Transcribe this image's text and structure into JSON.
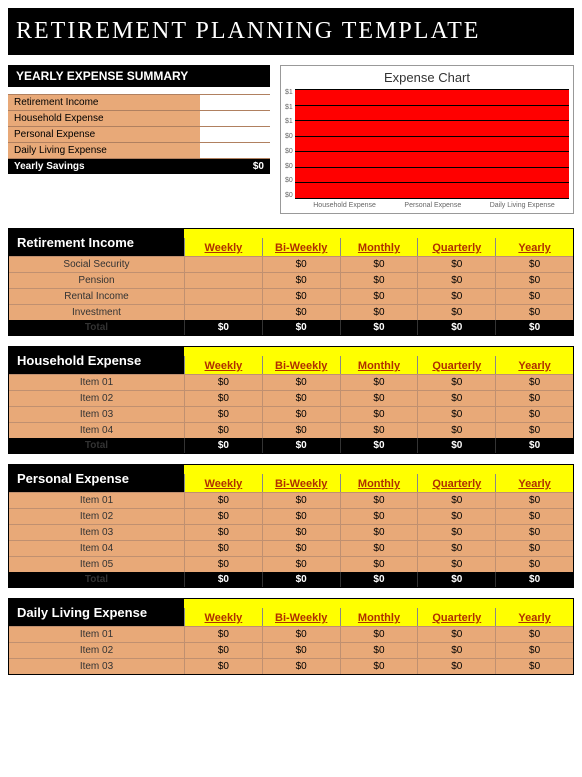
{
  "title": "RETIREMENT PLANNING TEMPLATE",
  "summary": {
    "header": "YEARLY EXPENSE SUMMARY",
    "rows": [
      {
        "label": "Retirement Income",
        "value": ""
      },
      {
        "label": "Household Expense",
        "value": ""
      },
      {
        "label": "Personal Expense",
        "value": ""
      },
      {
        "label": "Daily Living Expense",
        "value": ""
      }
    ],
    "total_label": "Yearly Savings",
    "total_value": "$0"
  },
  "chart": {
    "title": "Expense Chart",
    "type": "bar",
    "categories": [
      "Household Expense",
      "Personal Expense",
      "Daily Living Expense"
    ],
    "ylabels": [
      "$1",
      "$1",
      "$1",
      "$0",
      "$0",
      "$0",
      "$0",
      "$0"
    ],
    "plot_background": "#ff0000",
    "grid_color": "#000000",
    "grid_lines": 7
  },
  "columns": [
    "Weekly",
    "Bi-Weekly",
    "Monthly",
    "Quarterly",
    "Yearly"
  ],
  "sections": [
    {
      "title": "Retirement Income",
      "rows": [
        {
          "label": "Social Security",
          "cells": [
            "",
            "$0",
            "$0",
            "$0",
            "$0"
          ]
        },
        {
          "label": "Pension",
          "cells": [
            "",
            "$0",
            "$0",
            "$0",
            "$0"
          ]
        },
        {
          "label": "Rental Income",
          "cells": [
            "",
            "$0",
            "$0",
            "$0",
            "$0"
          ]
        },
        {
          "label": "Investment",
          "cells": [
            "",
            "$0",
            "$0",
            "$0",
            "$0"
          ]
        }
      ],
      "total": {
        "label": "Total",
        "cells": [
          "$0",
          "$0",
          "$0",
          "$0",
          "$0"
        ]
      }
    },
    {
      "title": "Household Expense",
      "rows": [
        {
          "label": "Item 01",
          "cells": [
            "$0",
            "$0",
            "$0",
            "$0",
            "$0"
          ]
        },
        {
          "label": "Item 02",
          "cells": [
            "$0",
            "$0",
            "$0",
            "$0",
            "$0"
          ]
        },
        {
          "label": "Item 03",
          "cells": [
            "$0",
            "$0",
            "$0",
            "$0",
            "$0"
          ]
        },
        {
          "label": "Item 04",
          "cells": [
            "$0",
            "$0",
            "$0",
            "$0",
            "$0"
          ]
        }
      ],
      "total": {
        "label": "Total",
        "cells": [
          "$0",
          "$0",
          "$0",
          "$0",
          "$0"
        ]
      }
    },
    {
      "title": "Personal Expense",
      "rows": [
        {
          "label": "Item 01",
          "cells": [
            "$0",
            "$0",
            "$0",
            "$0",
            "$0"
          ]
        },
        {
          "label": "Item 02",
          "cells": [
            "$0",
            "$0",
            "$0",
            "$0",
            "$0"
          ]
        },
        {
          "label": "Item 03",
          "cells": [
            "$0",
            "$0",
            "$0",
            "$0",
            "$0"
          ]
        },
        {
          "label": "Item 04",
          "cells": [
            "$0",
            "$0",
            "$0",
            "$0",
            "$0"
          ]
        },
        {
          "label": "Item 05",
          "cells": [
            "$0",
            "$0",
            "$0",
            "$0",
            "$0"
          ]
        }
      ],
      "total": {
        "label": "Total",
        "cells": [
          "$0",
          "$0",
          "$0",
          "$0",
          "$0"
        ]
      }
    },
    {
      "title": "Daily Living Expense",
      "rows": [
        {
          "label": "Item 01",
          "cells": [
            "$0",
            "$0",
            "$0",
            "$0",
            "$0"
          ]
        },
        {
          "label": "Item 02",
          "cells": [
            "$0",
            "$0",
            "$0",
            "$0",
            "$0"
          ]
        },
        {
          "label": "Item 03",
          "cells": [
            "$0",
            "$0",
            "$0",
            "$0",
            "$0"
          ]
        }
      ],
      "total": null
    }
  ],
  "colors": {
    "banner_bg": "#000000",
    "banner_text": "#ffffff",
    "yellow_header": "#ffff00",
    "col_head_text": "#b03000",
    "row_bg": "#e8a978",
    "total_bg": "#000000"
  }
}
